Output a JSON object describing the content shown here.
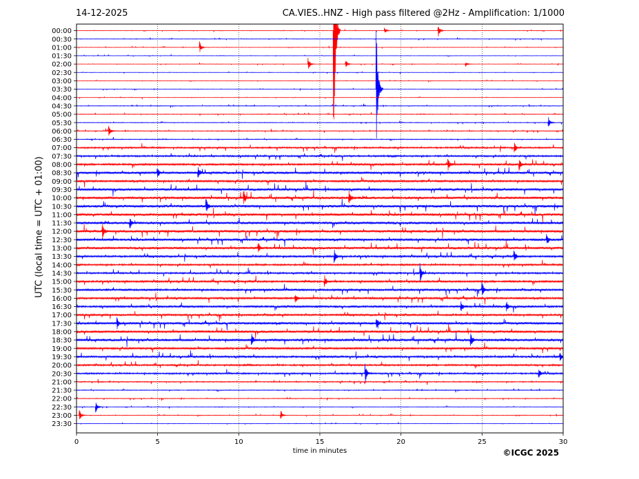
{
  "header": {
    "date": "14-12-2025",
    "title": "CA.VIES..HNZ - High pass filtered @2Hz - Amplification: 1/1000"
  },
  "footer": {
    "copyright": "©ICGC 2025"
  },
  "chart_data": {
    "type": "line",
    "title": "CA.VIES..HNZ - High pass filtered @2Hz - Amplification: 1/1000",
    "xlabel": "time in minutes",
    "ylabel": "UTC (local time = UTC + 01:00)",
    "xlim": [
      0,
      30
    ],
    "x_ticks": [
      "0",
      "5",
      "10",
      "15",
      "20",
      "25",
      "30"
    ],
    "x_tick_values": [
      0,
      5,
      10,
      15,
      20,
      25,
      30
    ],
    "grid": "vertical dotted lines at x ticks",
    "series_colors": [
      "#ff0000",
      "#0000ff"
    ],
    "rows": [
      "00:00",
      "00:30",
      "01:00",
      "01:30",
      "02:00",
      "02:30",
      "03:00",
      "03:30",
      "04:00",
      "04:30",
      "05:00",
      "05:30",
      "06:00",
      "06:30",
      "07:00",
      "07:30",
      "08:00",
      "08:30",
      "09:00",
      "09:30",
      "10:00",
      "10:30",
      "11:00",
      "11:30",
      "12:00",
      "12:30",
      "13:00",
      "13:30",
      "14:00",
      "14:30",
      "15:00",
      "15:30",
      "16:00",
      "16:30",
      "17:00",
      "17:30",
      "18:00",
      "18:30",
      "19:00",
      "19:30",
      "20:00",
      "20:30",
      "21:00",
      "21:30",
      "22:00",
      "22:30",
      "23:00",
      "23:30"
    ],
    "noise_level": [
      0.3,
      0.4,
      0.3,
      0.3,
      0.3,
      0.3,
      0.3,
      0.3,
      0.3,
      0.5,
      0.5,
      0.5,
      0.6,
      0.6,
      1.2,
      1.3,
      1.5,
      1.8,
      1.6,
      1.8,
      2.0,
      2.0,
      2.0,
      2.0,
      2.0,
      1.8,
      1.8,
      1.5,
      1.3,
      1.3,
      1.5,
      1.6,
      1.6,
      1.6,
      1.5,
      1.8,
      1.8,
      2.0,
      1.6,
      1.5,
      1.3,
      1.2,
      0.8,
      0.6,
      0.5,
      0.4,
      0.4,
      0.3
    ],
    "events": [
      {
        "row": "00:00",
        "t": 22.3,
        "amp": 10
      },
      {
        "row": "00:00",
        "t": 19.0,
        "amp": 4
      },
      {
        "row": "01:00",
        "t": 7.6,
        "amp": 9
      },
      {
        "row": "02:00",
        "t": 14.3,
        "amp": 9
      },
      {
        "row": "02:00",
        "t": 16.6,
        "amp": 7
      },
      {
        "row": "02:00",
        "t": 24.0,
        "amp": 4
      },
      {
        "row": "00:00",
        "t": 15.85,
        "amp": 240
      },
      {
        "row": "03:30",
        "t": 18.5,
        "amp": 90
      },
      {
        "row": "05:30",
        "t": 29.1,
        "amp": 8
      },
      {
        "row": "06:00",
        "t": 2.0,
        "amp": 8
      },
      {
        "row": "07:00",
        "t": 27.0,
        "amp": 8
      },
      {
        "row": "08:00",
        "t": 22.9,
        "amp": 9
      },
      {
        "row": "08:00",
        "t": 27.3,
        "amp": 9
      },
      {
        "row": "08:30",
        "t": 5.0,
        "amp": 8
      },
      {
        "row": "08:30",
        "t": 7.5,
        "amp": 8
      },
      {
        "row": "10:00",
        "t": 10.3,
        "amp": 12
      },
      {
        "row": "10:00",
        "t": 16.8,
        "amp": 10
      },
      {
        "row": "10:30",
        "t": 8.0,
        "amp": 10
      },
      {
        "row": "11:30",
        "t": 3.3,
        "amp": 8
      },
      {
        "row": "12:00",
        "t": 1.6,
        "amp": 12
      },
      {
        "row": "12:30",
        "t": 29.0,
        "amp": 8
      },
      {
        "row": "13:00",
        "t": 11.2,
        "amp": 8
      },
      {
        "row": "13:30",
        "t": 15.9,
        "amp": 10
      },
      {
        "row": "13:30",
        "t": 27.0,
        "amp": 8
      },
      {
        "row": "14:30",
        "t": 21.2,
        "amp": 14
      },
      {
        "row": "15:00",
        "t": 15.3,
        "amp": 9
      },
      {
        "row": "15:30",
        "t": 25.0,
        "amp": 12
      },
      {
        "row": "16:00",
        "t": 13.5,
        "amp": 8
      },
      {
        "row": "16:30",
        "t": 23.7,
        "amp": 9
      },
      {
        "row": "16:30",
        "t": 26.5,
        "amp": 8
      },
      {
        "row": "17:30",
        "t": 18.5,
        "amp": 9
      },
      {
        "row": "17:30",
        "t": 2.5,
        "amp": 8
      },
      {
        "row": "18:30",
        "t": 24.3,
        "amp": 10
      },
      {
        "row": "18:30",
        "t": 10.8,
        "amp": 9
      },
      {
        "row": "19:30",
        "t": 29.8,
        "amp": 8
      },
      {
        "row": "20:30",
        "t": 17.8,
        "amp": 14
      },
      {
        "row": "20:30",
        "t": 28.5,
        "amp": 8
      },
      {
        "row": "22:30",
        "t": 1.2,
        "amp": 8
      },
      {
        "row": "23:00",
        "t": 0.2,
        "amp": 9
      },
      {
        "row": "23:00",
        "t": 12.6,
        "amp": 6
      }
    ]
  }
}
